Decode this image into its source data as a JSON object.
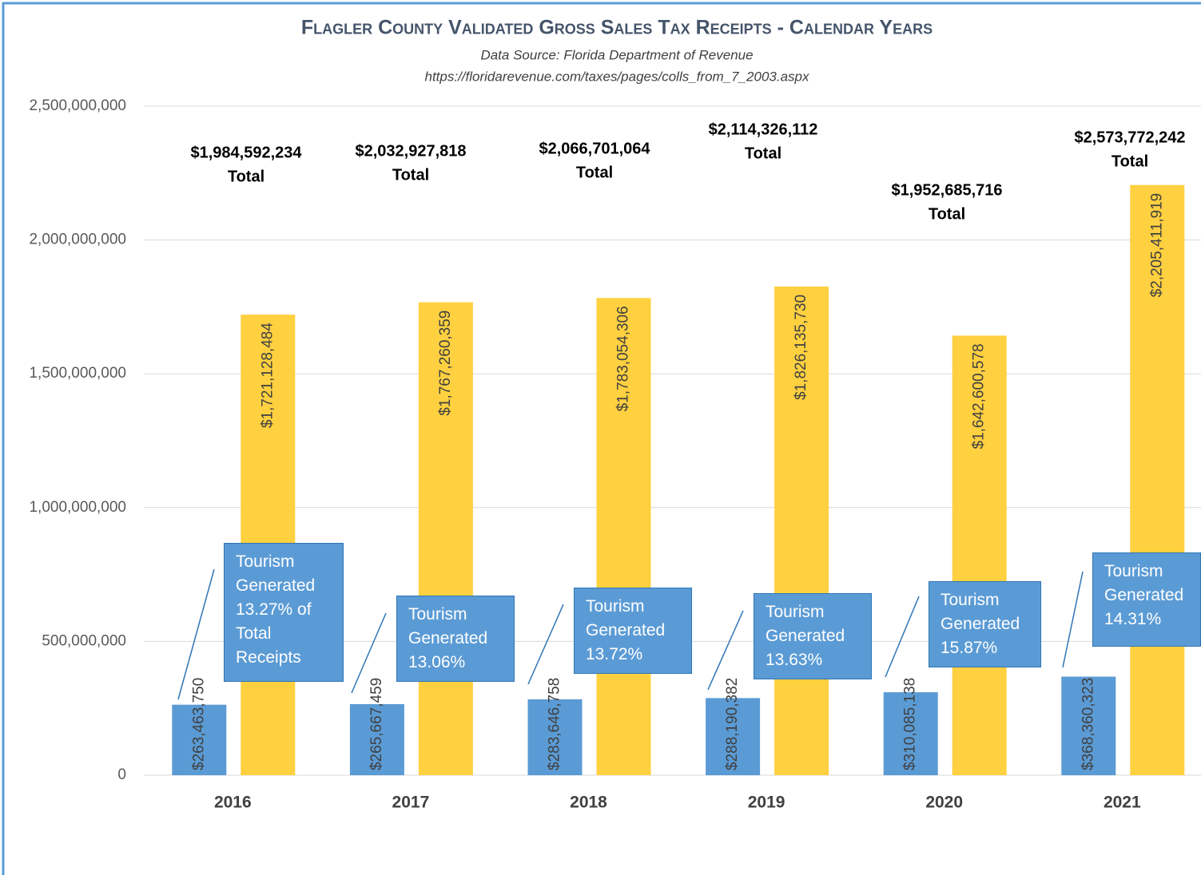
{
  "chart_data": {
    "type": "bar",
    "title": "Flagler County Validated Gross Sales Tax Receipts - Calendar Years",
    "subtitle": "Data Source: Florida Department of Revenue",
    "source": "https://floridarevenue.com/taxes/pages/colls_from_7_2003.aspx",
    "categories": [
      "2016",
      "2017",
      "2018",
      "2019",
      "2020",
      "2021"
    ],
    "series": [
      {
        "color": "#5b9bd5",
        "values": [
          263463750,
          265667459,
          283646758,
          288190382,
          310085138,
          368360323
        ],
        "value_labels": [
          "$263,463,750",
          "$265,667,459",
          "$283,646,758",
          "$288,190,382",
          "$310,085,138",
          "$368,360,323"
        ]
      },
      {
        "color": "#ffd040",
        "values": [
          1721128484,
          1767260359,
          1783054306,
          1826135730,
          1642600578,
          2205411919
        ],
        "value_labels": [
          "$1,721,128,484",
          "$1,767,260,359",
          "$1,783,054,306",
          "$1,826,135,730",
          "$1,642,600,578",
          "$2,205,411,919"
        ]
      }
    ],
    "totals": {
      "label": "Total",
      "values": [
        1984592234,
        2032927818,
        2066701064,
        2114326112,
        1952685716,
        2573772242
      ],
      "value_labels": [
        "$1,984,592,234",
        "$2,032,927,818",
        "$2,066,701,064",
        "$2,114,326,112",
        "$1,952,685,716",
        "$2,573,772,242"
      ]
    },
    "callouts": [
      "Tourism Generated 13.27% of Total Receipts",
      "Tourism Generated 13.06%",
      "Tourism Generated 13.72%",
      "Tourism Generated 13.63%",
      "Tourism Generated 15.87%",
      "Tourism Generated 14.31%"
    ],
    "ylim": [
      0,
      2500000000
    ],
    "yticks": [
      0,
      {
        "value": 500000000,
        "label": "500,000,000"
      },
      {
        "value": 1000000000,
        "label": "1,000,000,000"
      },
      {
        "value": 1500000000,
        "label": "1,500,000,000"
      },
      {
        "value": 2000000000,
        "label": "2,000,000,000"
      },
      {
        "value": 2500000000,
        "label": "2,500,000,000"
      }
    ],
    "grid": true
  }
}
